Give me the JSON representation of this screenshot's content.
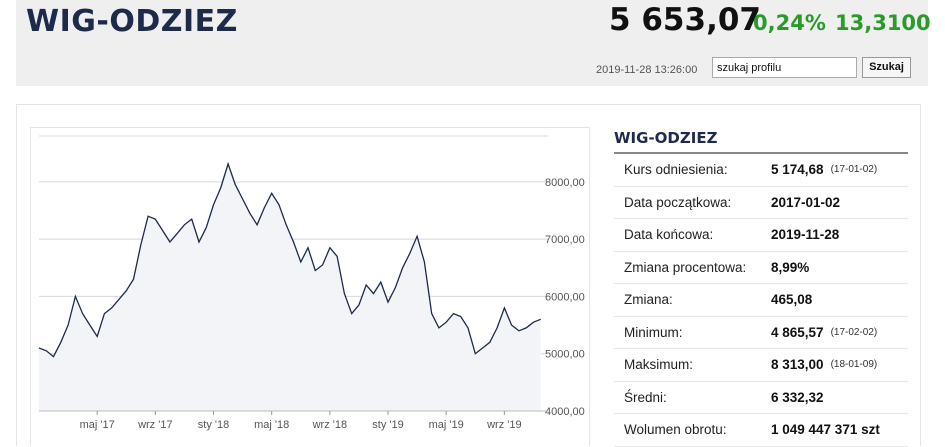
{
  "header": {
    "index_name": "WIG-ODZIEZ",
    "price": "5 653,07",
    "change_pct": "0,24%",
    "change_abs": "13,3100",
    "timestamp": "2019-11-28 13:26:00",
    "search_value": "szukaj profilu",
    "search_button": "Szukaj",
    "accent_color": "#2a9a2a",
    "title_color": "#1d2a4a"
  },
  "info": {
    "title": "WIG-ODZIEZ",
    "rows": [
      {
        "label": "Kurs odniesienia:",
        "value": "5 174,68",
        "sub": "(17-01-02)"
      },
      {
        "label": "Data początkowa:",
        "value": "2017-01-02",
        "sub": ""
      },
      {
        "label": "Data końcowa:",
        "value": "2019-11-28",
        "sub": ""
      },
      {
        "label": "Zmiana procentowa:",
        "value": "8,99%",
        "sub": ""
      },
      {
        "label": "Zmiana:",
        "value": "465,08",
        "sub": ""
      },
      {
        "label": "Minimum:",
        "value": "4 865,57",
        "sub": "(17-02-02)"
      },
      {
        "label": "Maksimum:",
        "value": "8 313,00",
        "sub": "(18-01-09)"
      },
      {
        "label": "Średni:",
        "value": "6 332,32",
        "sub": ""
      },
      {
        "label": "Wolumen obrotu:",
        "value": "1 049 447 371 szt",
        "sub": ""
      }
    ]
  },
  "chart_data": {
    "type": "area",
    "x_tick_labels": [
      "maj '17",
      "wrz '17",
      "sty '18",
      "maj '18",
      "wrz '18",
      "sty '19",
      "maj '19",
      "wrz '19"
    ],
    "y_tick_labels": [
      "8000,00",
      "7000,00",
      "6000,00",
      "5000,00",
      "4000,00"
    ],
    "y_ticks": [
      8000,
      7000,
      6000,
      5000,
      4000
    ],
    "ylim": [
      4000,
      8800
    ],
    "xlim": [
      0,
      35
    ],
    "grid": true,
    "line_color": "#1d2a4a",
    "fill_color": "#f2f4f7",
    "x_unit": "months since 2017-01",
    "series": [
      {
        "x": [
          0,
          0.5,
          1,
          1.5,
          2,
          2.5,
          3,
          3.5,
          4,
          4.5,
          5,
          5.5,
          6,
          6.5,
          7,
          7.5,
          8,
          8.5,
          9,
          9.5,
          10,
          10.5,
          11,
          11.5,
          12,
          12.5,
          13,
          13.5,
          14,
          14.5,
          15,
          15.5,
          16,
          16.5,
          17,
          17.5,
          18,
          18.5,
          19,
          19.5,
          20,
          20.5,
          21,
          21.5,
          22,
          22.5,
          23,
          23.5,
          24,
          24.5,
          25,
          25.5,
          26,
          26.5,
          27,
          27.5,
          28,
          28.5,
          29,
          29.5,
          30,
          30.5,
          31,
          31.5,
          32,
          32.5,
          33,
          33.5,
          34,
          34.5
        ],
        "values": [
          5100,
          5050,
          4950,
          5200,
          5500,
          6000,
          5700,
          5500,
          5300,
          5700,
          5800,
          5950,
          6100,
          6300,
          6900,
          7400,
          7350,
          7150,
          6950,
          7100,
          7250,
          7350,
          6950,
          7200,
          7600,
          7900,
          8313,
          7950,
          7700,
          7450,
          7250,
          7550,
          7800,
          7600,
          7250,
          6950,
          6600,
          6850,
          6450,
          6550,
          6850,
          6700,
          6050,
          5700,
          5850,
          6200,
          6050,
          6250,
          5900,
          6150,
          6500,
          6750,
          7050,
          6600,
          5700,
          5450,
          5550,
          5700,
          5650,
          5450,
          5000,
          5100,
          5200,
          5450,
          5800,
          5500,
          5400,
          5450,
          5550,
          5600
        ]
      }
    ]
  }
}
